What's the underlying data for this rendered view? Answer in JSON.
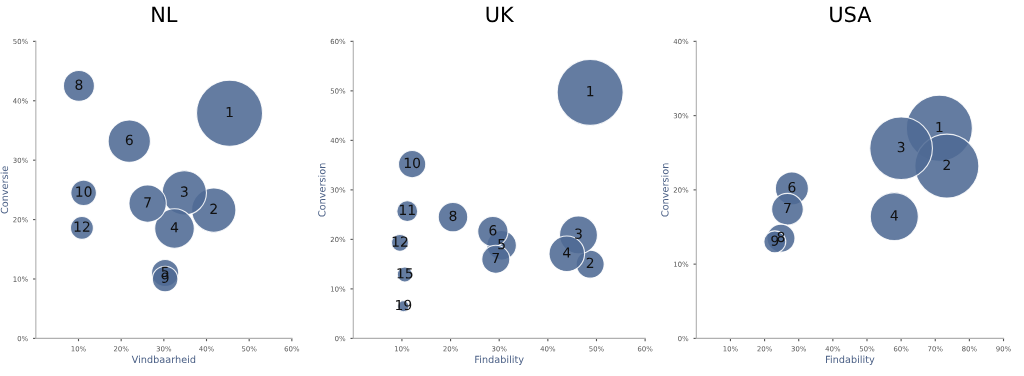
{
  "chart_data": [
    {
      "type": "bubble",
      "title": "NL",
      "xlabel": "Vindbaarheid",
      "ylabel": "Conversie",
      "color": "#4f6a94",
      "grid": false,
      "x": [
        45.4,
        41.7,
        34.8,
        32.5,
        30.3,
        21.9,
        26.2,
        10.1,
        30.3,
        11.2,
        10.8
      ],
      "values": [
        37.9,
        21.6,
        24.5,
        18.5,
        11.0,
        33.2,
        22.7,
        42.5,
        10.0,
        24.5,
        18.6
      ],
      "sizes": [
        1,
        0.45,
        0.45,
        0.36,
        0.17,
        0.41,
        0.32,
        0.22,
        0.15,
        0.15,
        0.12
      ],
      "xlim": [
        0,
        60
      ],
      "ylim": [
        0,
        50
      ],
      "xticks": [
        {
          "value": 10,
          "label": "10%"
        },
        {
          "value": 20,
          "label": "20%"
        },
        {
          "value": 30,
          "label": "30%"
        },
        {
          "value": 40,
          "label": "40%"
        },
        {
          "value": 50,
          "label": "50%"
        },
        {
          "value": 60,
          "label": "60%"
        }
      ],
      "yticks": [
        {
          "value": 0,
          "label": "0%"
        },
        {
          "value": 10,
          "label": "10%"
        },
        {
          "value": 20,
          "label": "20%"
        },
        {
          "value": 30,
          "label": "30%"
        },
        {
          "value": 40,
          "label": "40%"
        },
        {
          "value": 50,
          "label": "50%"
        }
      ],
      "annotations": [
        {
          "text": "1",
          "x": 45.4,
          "y": 37.9
        },
        {
          "text": "2",
          "x": 41.7,
          "y": 21.6
        },
        {
          "text": "3",
          "x": 34.8,
          "y": 24.5
        },
        {
          "text": "4",
          "x": 32.5,
          "y": 18.5
        },
        {
          "text": "5",
          "x": 30.3,
          "y": 11.0
        },
        {
          "text": "6",
          "x": 21.9,
          "y": 33.2
        },
        {
          "text": "7",
          "x": 26.2,
          "y": 22.7
        },
        {
          "text": "8",
          "x": 10.1,
          "y": 42.5
        },
        {
          "text": "9",
          "x": 30.3,
          "y": 10.0
        },
        {
          "text": "10",
          "x": 11.2,
          "y": 24.5
        },
        {
          "text": "12",
          "x": 10.8,
          "y": 18.6
        }
      ]
    },
    {
      "type": "bubble",
      "title": "UK",
      "xlabel": "Findability",
      "ylabel": "Conversion",
      "color": "#4f6a94",
      "grid": false,
      "x": [
        48.7,
        48.7,
        46.3,
        43.9,
        30.5,
        28.7,
        29.3,
        20.5,
        12.1,
        11.1,
        9.6,
        10.6,
        10.3
      ],
      "values": [
        49.7,
        15.0,
        20.9,
        17.1,
        18.8,
        21.6,
        16.0,
        24.5,
        35.2,
        25.7,
        19.3,
        12.9,
        6.5
      ],
      "sizes": [
        1,
        0.18,
        0.33,
        0.29,
        0.2,
        0.21,
        0.18,
        0.2,
        0.17,
        0.1,
        0.066,
        0.052,
        0.029
      ],
      "xlim": [
        0,
        60
      ],
      "ylim": [
        0,
        60
      ],
      "xticks": [
        {
          "value": 10,
          "label": "10%"
        },
        {
          "value": 20,
          "label": "20%"
        },
        {
          "value": 30,
          "label": "30%"
        },
        {
          "value": 40,
          "label": "40%"
        },
        {
          "value": 50,
          "label": "50%"
        },
        {
          "value": 60,
          "label": "60%"
        }
      ],
      "yticks": [
        {
          "value": 0,
          "label": "0%"
        },
        {
          "value": 10,
          "label": "10%"
        },
        {
          "value": 20,
          "label": "20%"
        },
        {
          "value": 30,
          "label": "30%"
        },
        {
          "value": 40,
          "label": "40%"
        },
        {
          "value": 50,
          "label": "50%"
        },
        {
          "value": 60,
          "label": "60%"
        }
      ],
      "annotations": [
        {
          "text": "1",
          "x": 48.7,
          "y": 49.7
        },
        {
          "text": "2",
          "x": 48.7,
          "y": 15.0
        },
        {
          "text": "3",
          "x": 46.3,
          "y": 20.9
        },
        {
          "text": "4",
          "x": 43.9,
          "y": 17.1
        },
        {
          "text": "5",
          "x": 30.5,
          "y": 18.8
        },
        {
          "text": "6",
          "x": 28.7,
          "y": 21.6
        },
        {
          "text": "7",
          "x": 29.3,
          "y": 16.0
        },
        {
          "text": "8",
          "x": 20.5,
          "y": 24.5
        },
        {
          "text": "10",
          "x": 12.1,
          "y": 35.2
        },
        {
          "text": "11",
          "x": 11.1,
          "y": 25.7
        },
        {
          "text": "12",
          "x": 9.6,
          "y": 19.3
        },
        {
          "text": "15",
          "x": 10.6,
          "y": 12.9
        },
        {
          "text": "19",
          "x": 10.3,
          "y": 6.5
        }
      ]
    },
    {
      "type": "bubble",
      "title": "USA",
      "xlabel": "Findability",
      "ylabel": "Conversion",
      "color": "#4f6a94",
      "grid": false,
      "x": [
        71.2,
        73.4,
        60.0,
        58.0,
        28.0,
        26.7,
        24.8,
        23.0
      ],
      "values": [
        28.3,
        23.2,
        25.6,
        16.4,
        20.2,
        17.4,
        13.5,
        13.0
      ],
      "sizes": [
        1,
        0.94,
        0.9,
        0.53,
        0.25,
        0.23,
        0.18,
        0.11
      ],
      "xlim": [
        0,
        90
      ],
      "ylim": [
        0,
        40
      ],
      "xticks": [
        {
          "value": 10,
          "label": "10%"
        },
        {
          "value": 20,
          "label": "20%"
        },
        {
          "value": 30,
          "label": "30%"
        },
        {
          "value": 40,
          "label": "40%"
        },
        {
          "value": 50,
          "label": "50%"
        },
        {
          "value": 60,
          "label": "60%"
        },
        {
          "value": 70,
          "label": "70%"
        },
        {
          "value": 80,
          "label": "80%"
        },
        {
          "value": 90,
          "label": "90%"
        }
      ],
      "yticks": [
        {
          "value": 0,
          "label": "0%"
        },
        {
          "value": 10,
          "label": "10%"
        },
        {
          "value": 20,
          "label": "20%"
        },
        {
          "value": 30,
          "label": "30%"
        },
        {
          "value": 40,
          "label": "40%"
        }
      ],
      "annotations": [
        {
          "text": "1",
          "x": 71.2,
          "y": 28.3
        },
        {
          "text": "2",
          "x": 73.4,
          "y": 23.2
        },
        {
          "text": "3",
          "x": 60.0,
          "y": 25.6
        },
        {
          "text": "4",
          "x": 58.0,
          "y": 16.4
        },
        {
          "text": "6",
          "x": 28.0,
          "y": 20.2
        },
        {
          "text": "7",
          "x": 26.7,
          "y": 17.4
        },
        {
          "text": "8",
          "x": 24.8,
          "y": 13.5
        },
        {
          "text": "9",
          "x": 23.0,
          "y": 13.0
        }
      ]
    }
  ]
}
